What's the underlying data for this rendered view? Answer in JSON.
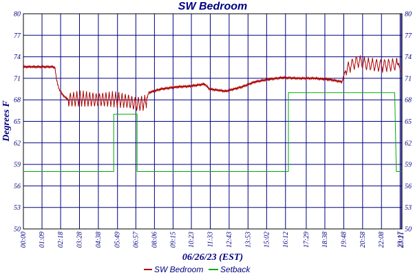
{
  "chart_data": {
    "type": "line",
    "title": "SW Bedroom",
    "xlabel": "06/26/23 (EST)",
    "ylabel": "Degrees F",
    "left_tick_labels": [
      "80",
      "77",
      "74",
      "71",
      "68",
      "65",
      "62",
      "59",
      "56",
      "53",
      "50"
    ],
    "right_tick_labels": [
      "80",
      "77",
      "74",
      "71",
      "68",
      "65",
      "62",
      "59",
      "56",
      "53",
      "50"
    ],
    "ylim": [
      50,
      80
    ],
    "x_tick_labels": [
      "00:00",
      "01:09",
      "02:18",
      "03:28",
      "04:38",
      "05:49",
      "06:57",
      "08:06",
      "09:15",
      "10:23",
      "11:33",
      "12:43",
      "13:53",
      "15:02",
      "16:12",
      "17:29",
      "18:38",
      "19:48",
      "20:58",
      "22:08",
      "23:17",
      "23:21"
    ],
    "x_tick_hours": [
      0,
      1.15,
      2.3,
      3.467,
      4.633,
      5.817,
      6.95,
      8.1,
      9.25,
      10.383,
      11.55,
      12.717,
      13.883,
      15.033,
      16.2,
      17.483,
      18.633,
      19.8,
      20.967,
      22.133,
      23.283,
      23.35
    ],
    "xlim_hours": [
      0,
      23.4
    ],
    "grid": true,
    "legend_position": "bottom-center",
    "series": [
      {
        "name": "SW Bedroom",
        "color": "#aa0000",
        "oscillating_segments": [
          {
            "start": 2.8,
            "end": 7.6,
            "period": 0.2,
            "amp": 1.0
          },
          {
            "start": 19.95,
            "end": 23.1,
            "period": 0.25,
            "amp": 0.9
          }
        ],
        "points": [
          [
            0.0,
            72.6
          ],
          [
            1.0,
            72.6
          ],
          [
            1.8,
            72.6
          ],
          [
            1.95,
            72.5
          ],
          [
            2.05,
            70.8
          ],
          [
            2.2,
            69.5
          ],
          [
            2.4,
            68.8
          ],
          [
            2.6,
            68.3
          ],
          [
            2.8,
            68.0
          ],
          [
            3.5,
            68.2
          ],
          [
            4.5,
            68.0
          ],
          [
            5.5,
            68.1
          ],
          [
            6.5,
            67.8
          ],
          [
            7.0,
            67.4
          ],
          [
            7.55,
            67.6
          ],
          [
            7.75,
            69.0
          ],
          [
            8.5,
            69.5
          ],
          [
            9.5,
            69.8
          ],
          [
            10.3,
            69.9
          ],
          [
            11.2,
            70.2
          ],
          [
            11.5,
            69.5
          ],
          [
            12.5,
            69.2
          ],
          [
            13.5,
            69.8
          ],
          [
            14.3,
            70.5
          ],
          [
            15.0,
            70.8
          ],
          [
            16.0,
            71.1
          ],
          [
            17.0,
            71.0
          ],
          [
            18.0,
            71.0
          ],
          [
            19.0,
            70.8
          ],
          [
            19.7,
            70.5
          ],
          [
            19.85,
            71.8
          ],
          [
            20.2,
            72.8
          ],
          [
            20.7,
            73.4
          ],
          [
            21.2,
            73.0
          ],
          [
            22.0,
            72.8
          ],
          [
            23.0,
            72.9
          ],
          [
            23.2,
            73.0
          ],
          [
            23.33,
            71.8
          ]
        ]
      },
      {
        "name": "Setback",
        "color": "#00aa00",
        "points": [
          [
            0.0,
            58.0
          ],
          [
            5.58,
            58.0
          ],
          [
            5.58,
            66.0
          ],
          [
            7.03,
            66.0
          ],
          [
            7.03,
            58.0
          ],
          [
            16.38,
            58.0
          ],
          [
            16.38,
            69.0
          ],
          [
            22.95,
            69.0
          ],
          [
            23.05,
            58.0
          ],
          [
            23.4,
            58.0
          ]
        ]
      }
    ]
  }
}
